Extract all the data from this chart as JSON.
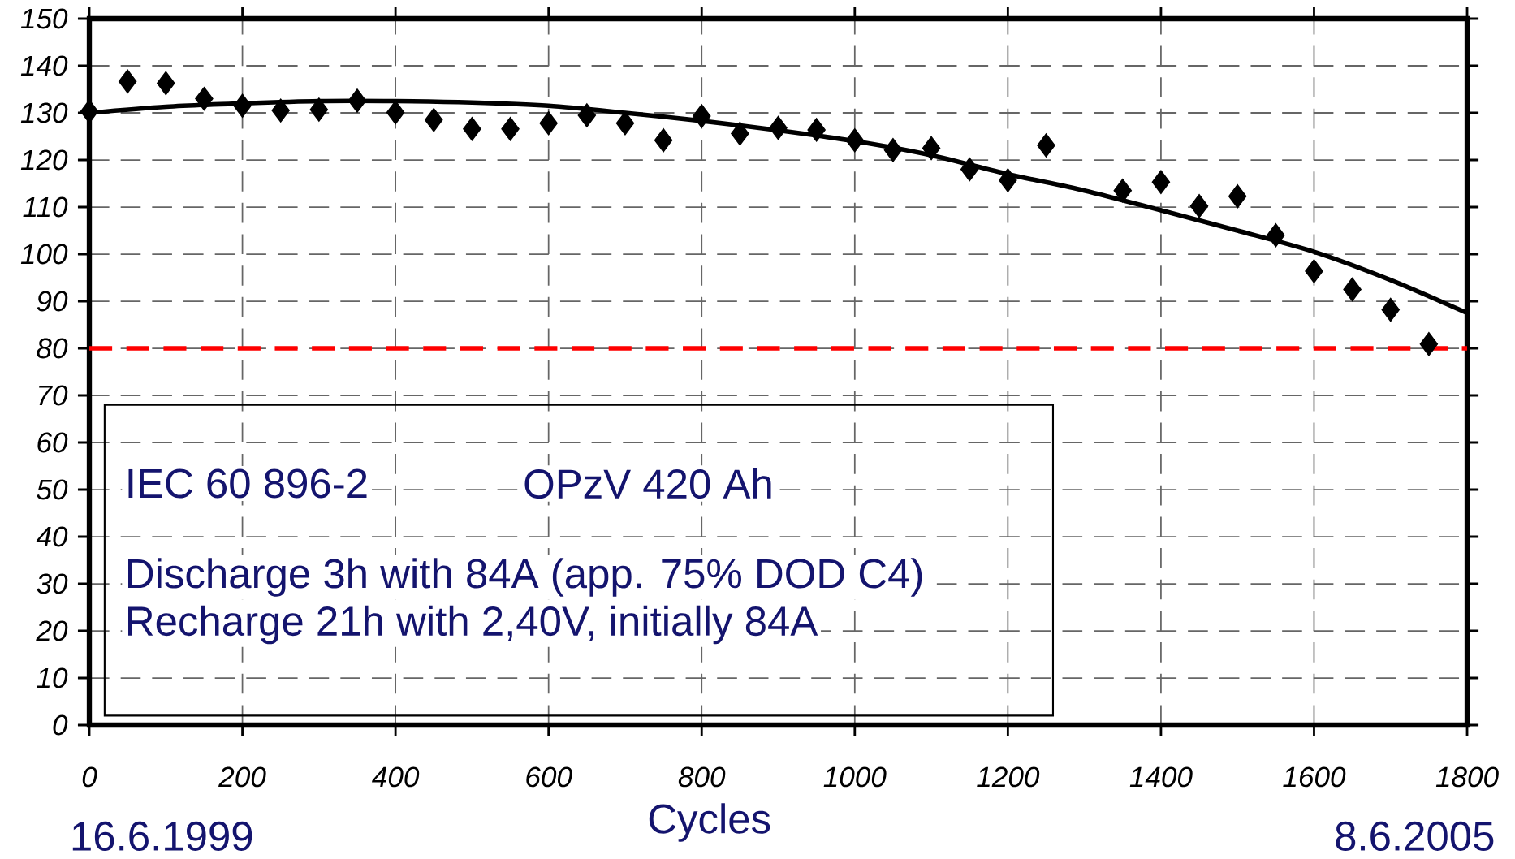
{
  "chart_data": {
    "type": "scatter",
    "xlabel": "Cycles",
    "xlim": [
      0,
      1800
    ],
    "ylim": [
      0,
      150
    ],
    "xticks": [
      0,
      200,
      400,
      600,
      800,
      1000,
      1200,
      1400,
      1600,
      1800
    ],
    "yticks": [
      0,
      10,
      20,
      30,
      40,
      50,
      60,
      70,
      80,
      90,
      100,
      110,
      120,
      130,
      140,
      150
    ],
    "grid": true,
    "marker": "diamond",
    "series": [
      {
        "color": "#000000",
        "x": [
          0,
          50,
          100,
          150,
          200,
          250,
          300,
          350,
          400,
          450,
          500,
          550,
          600,
          650,
          700,
          750,
          800,
          850,
          900,
          950,
          1000,
          1050,
          1100,
          1150,
          1200,
          1250,
          1350,
          1400,
          1450,
          1500,
          1550,
          1600,
          1650,
          1700,
          1750
        ],
        "values": [
          130.3,
          136.7,
          136.3,
          133,
          131.5,
          130.5,
          130.7,
          132.6,
          130.1,
          128.5,
          126.6,
          126.6,
          127.8,
          129.5,
          127.8,
          124.2,
          129.3,
          125.6,
          126.8,
          126.4,
          124.2,
          122.1,
          122.5,
          118,
          115.7,
          123.1,
          113.5,
          115.3,
          110.2,
          112.3,
          104,
          96.4,
          92.5,
          88.2,
          80.9
        ]
      },
      {
        "type": "line",
        "color": "#000000",
        "marker": "none",
        "x": [
          0,
          100,
          200,
          300,
          400,
          500,
          600,
          700,
          800,
          900,
          1000,
          1100,
          1200,
          1300,
          1400,
          1500,
          1600,
          1700,
          1800
        ],
        "values": [
          130,
          131.3,
          132,
          132.5,
          132.5,
          132.2,
          131.5,
          130,
          128.3,
          126.3,
          124,
          121,
          117,
          113.5,
          109.3,
          105,
          100.5,
          94.5,
          87.5
        ]
      }
    ],
    "ref_lines": [
      {
        "axis": "y",
        "value": 80,
        "color": "#ff0000",
        "line_style": "dashed"
      }
    ],
    "annotations": [
      "IEC 60 896-2",
      "OPzV 420 Ah",
      "Discharge 3h with 84A (app. 75% DOD C4)",
      "Recharge 21h with 2,40V, initially 84A",
      "16.6.1999",
      "8.6.2005"
    ]
  }
}
